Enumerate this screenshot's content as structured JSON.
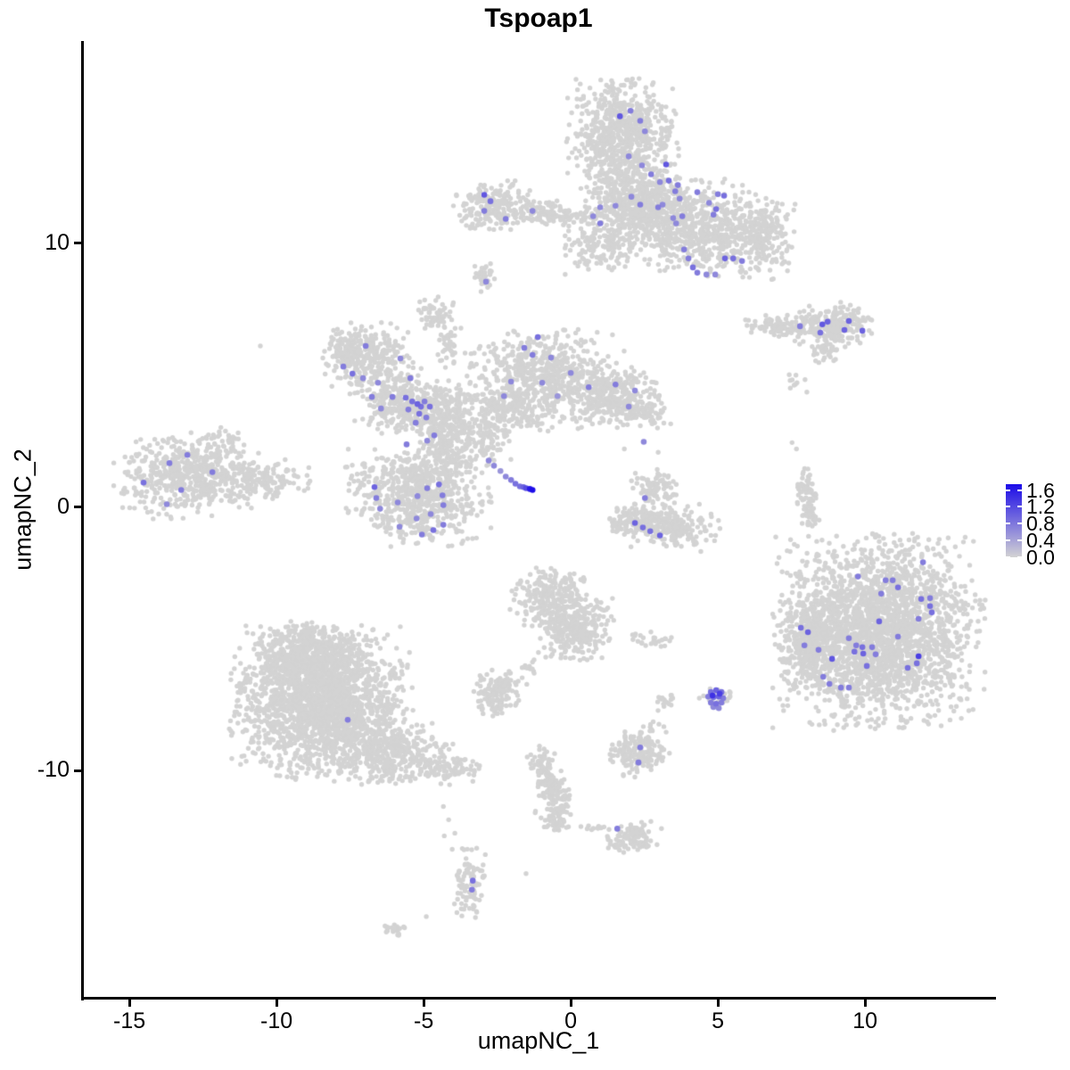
{
  "title": "Tspoap1",
  "axes": {
    "x": {
      "label": "umapNC_1",
      "ticks": [
        -15,
        -10,
        -5,
        0,
        5,
        10
      ]
    },
    "y": {
      "label": "umapNC_2",
      "ticks": [
        10,
        0,
        -10
      ]
    }
  },
  "legend": {
    "tick_labels": [
      "1.6",
      "1.2",
      "0.8",
      "0.4",
      "0.0"
    ],
    "tick_values": [
      1.6,
      1.2,
      0.8,
      0.4,
      0.0
    ],
    "bar_max": 1.74,
    "low_color": "#D3D3D3",
    "high_color": "#1C0CE8"
  },
  "chart_data": {
    "type": "scatter",
    "title": "Tspoap1",
    "xlabel": "umapNC_1",
    "ylabel": "umapNC_2",
    "xlim": [
      -16.58,
      14.39
    ],
    "ylim": [
      -18.61,
      17.63
    ],
    "expression_range": [
      0.0,
      1.6
    ],
    "background_point_color": "#D3D3D3",
    "background_clusters_format": [
      "center_x",
      "center_y",
      "sigma_x",
      "sigma_y",
      "n_points"
    ],
    "background_clusters": [
      [
        1.76,
        14.24,
        0.85,
        0.88,
        600
      ],
      [
        1.82,
        12.03,
        0.67,
        0.95,
        320
      ],
      [
        2.6,
        11.4,
        0.6,
        0.6,
        200
      ],
      [
        3.48,
        10.85,
        1.06,
        0.85,
        480
      ],
      [
        5.3,
        10.34,
        0.91,
        0.75,
        380
      ],
      [
        0.91,
        9.83,
        0.55,
        0.47,
        140
      ],
      [
        6.67,
        10.44,
        0.48,
        0.55,
        120
      ],
      [
        -2.64,
        11.42,
        0.61,
        0.44,
        220
      ],
      [
        -0.85,
        11.12,
        0.55,
        0.24,
        90
      ],
      [
        0.24,
        11.02,
        0.36,
        0.17,
        30
      ],
      [
        -2.88,
        8.71,
        0.18,
        0.24,
        30
      ],
      [
        7.12,
        6.88,
        0.55,
        0.2,
        90
      ],
      [
        8.85,
        6.85,
        0.61,
        0.41,
        220
      ],
      [
        8.7,
        5.9,
        0.24,
        0.2,
        35
      ],
      [
        7.67,
        4.68,
        0.24,
        0.27,
        10
      ],
      [
        -6.82,
        5.59,
        0.76,
        0.61,
        280
      ],
      [
        -7.48,
        6.03,
        0.36,
        0.34,
        90
      ],
      [
        -5.61,
        3.9,
        0.76,
        0.51,
        300
      ],
      [
        -4.24,
        3.39,
        0.61,
        0.61,
        230
      ],
      [
        -4.64,
        7.29,
        0.3,
        0.31,
        60
      ],
      [
        -4.15,
        6.2,
        0.21,
        0.41,
        40
      ],
      [
        -0.91,
        5.08,
        1.21,
        0.75,
        550
      ],
      [
        1.21,
        4.24,
        0.91,
        0.61,
        300
      ],
      [
        2.48,
        3.66,
        0.45,
        0.34,
        90
      ],
      [
        -1.97,
        3.66,
        0.76,
        0.41,
        200
      ],
      [
        -5.21,
        0.51,
        1.09,
        0.88,
        700
      ],
      [
        -4.09,
        2.03,
        0.55,
        0.51,
        120
      ],
      [
        -2.88,
        2.54,
        0.45,
        0.41,
        70
      ],
      [
        -13.03,
        1.19,
        1.09,
        0.75,
        550
      ],
      [
        -10.3,
        1.02,
        0.76,
        0.34,
        150
      ],
      [
        -11.58,
        2.54,
        0.18,
        0.27,
        20
      ],
      [
        2.88,
        0.68,
        0.36,
        0.41,
        90
      ],
      [
        3.18,
        -0.68,
        0.85,
        0.37,
        280
      ],
      [
        2.03,
        -0.44,
        0.27,
        0.24,
        50
      ],
      [
        7.97,
        0.75,
        0.15,
        0.37,
        45
      ],
      [
        8.12,
        -0.27,
        0.15,
        0.37,
        45
      ],
      [
        10.45,
        -4.75,
        1.58,
        1.63,
        2400
      ],
      [
        8.18,
        -5.25,
        0.42,
        0.75,
        280
      ],
      [
        -0.61,
        -3.46,
        0.67,
        0.54,
        250
      ],
      [
        0.15,
        -4.58,
        0.61,
        0.54,
        280
      ],
      [
        -1.45,
        -6.03,
        0.15,
        0.2,
        12
      ],
      [
        -2.48,
        -6.95,
        0.48,
        0.34,
        120
      ],
      [
        -2.64,
        -7.63,
        0.18,
        0.17,
        20
      ],
      [
        2.67,
        -4.98,
        0.36,
        0.17,
        25
      ],
      [
        4.94,
        -7.22,
        0.3,
        0.27,
        28
      ],
      [
        3.18,
        -7.39,
        0.18,
        0.2,
        18
      ],
      [
        2.67,
        -8.31,
        0.27,
        0.12,
        8
      ],
      [
        2.33,
        -9.32,
        0.48,
        0.41,
        170
      ],
      [
        -8.48,
        -7.46,
        1.36,
        1.29,
        2000
      ],
      [
        -8.94,
        -5.59,
        0.85,
        0.58,
        450
      ],
      [
        -6.06,
        -9.32,
        0.91,
        0.54,
        350
      ],
      [
        -4.24,
        -9.93,
        0.55,
        0.27,
        90
      ],
      [
        -3.45,
        -14.31,
        0.27,
        0.61,
        90
      ],
      [
        -0.97,
        -9.66,
        0.24,
        0.27,
        55
      ],
      [
        -0.67,
        -10.51,
        0.24,
        0.34,
        70
      ],
      [
        -0.39,
        -11.25,
        0.24,
        0.27,
        55
      ],
      [
        -0.55,
        -11.93,
        0.3,
        0.2,
        45
      ],
      [
        0.76,
        -12.14,
        0.33,
        0.08,
        12
      ],
      [
        2.18,
        -12.54,
        0.42,
        0.27,
        100
      ],
      [
        -5.97,
        -16.03,
        0.27,
        0.15,
        22
      ]
    ],
    "background_singles": [
      [
        8.03,
        -1.76
      ],
      [
        8.73,
        -2.31
      ],
      [
        8.58,
        -2.88
      ],
      [
        8.24,
        -3.32
      ],
      [
        7.76,
        -3.73
      ],
      [
        7.48,
        -4.14
      ],
      [
        7.21,
        -4.41
      ],
      [
        7.67,
        2.2
      ],
      [
        7.52,
        2.44
      ],
      [
        -10.55,
        6.1
      ],
      [
        1.82,
        2.2
      ],
      [
        2.97,
        2.07
      ],
      [
        4.42,
        -1.69
      ],
      [
        3.42,
        -4.95
      ],
      [
        -4.33,
        -11.36
      ],
      [
        -4.15,
        -11.86
      ],
      [
        -4.3,
        -12.47
      ],
      [
        -4.03,
        -12.98
      ],
      [
        -3.94,
        -12.37
      ],
      [
        -4.91,
        -15.53
      ],
      [
        -1.52,
        -13.9
      ],
      [
        -6.36,
        6.61
      ],
      [
        -6.21,
        6.1
      ]
    ],
    "expressing_points_format": [
      "x",
      "y",
      "expression_value"
    ],
    "expressing_points": [
      [
        1.67,
        14.81,
        1.0
      ],
      [
        2.03,
        15.02,
        0.7
      ],
      [
        2.36,
        14.64,
        0.7
      ],
      [
        2.52,
        14.24,
        0.6
      ],
      [
        1.97,
        13.29,
        0.6
      ],
      [
        2.42,
        12.95,
        0.6
      ],
      [
        3.24,
        12.98,
        1.0
      ],
      [
        2.73,
        12.61,
        0.7
      ],
      [
        3.03,
        12.31,
        0.6
      ],
      [
        3.33,
        12.37,
        0.8
      ],
      [
        3.64,
        12.2,
        0.7
      ],
      [
        3.55,
        11.97,
        0.7
      ],
      [
        3.7,
        11.69,
        0.6
      ],
      [
        4.3,
        11.93,
        0.7
      ],
      [
        5.0,
        11.86,
        0.7
      ],
      [
        5.21,
        11.8,
        0.8
      ],
      [
        4.7,
        11.53,
        0.6
      ],
      [
        4.94,
        11.29,
        0.8
      ],
      [
        4.85,
        11.08,
        0.7
      ],
      [
        3.79,
        11.02,
        0.7
      ],
      [
        3.48,
        10.95,
        0.6
      ],
      [
        3.58,
        10.75,
        0.6
      ],
      [
        2.97,
        11.36,
        0.7
      ],
      [
        3.12,
        11.46,
        0.6
      ],
      [
        2.06,
        11.76,
        0.6
      ],
      [
        2.36,
        11.46,
        0.7
      ],
      [
        1.0,
        11.36,
        0.6
      ],
      [
        0.76,
        11.02,
        0.6
      ],
      [
        1.0,
        10.75,
        0.7
      ],
      [
        1.52,
        11.42,
        0.6
      ],
      [
        3.85,
        9.76,
        0.7
      ],
      [
        4.0,
        9.42,
        0.7
      ],
      [
        4.15,
        9.08,
        0.8
      ],
      [
        4.3,
        8.88,
        0.7
      ],
      [
        4.61,
        8.81,
        0.6
      ],
      [
        4.91,
        8.81,
        0.6
      ],
      [
        5.24,
        9.42,
        0.9
      ],
      [
        5.52,
        9.42,
        0.8
      ],
      [
        5.82,
        9.32,
        0.7
      ],
      [
        -2.94,
        11.83,
        1.0
      ],
      [
        -2.73,
        11.59,
        0.8
      ],
      [
        -2.94,
        11.22,
        0.7
      ],
      [
        -2.21,
        10.92,
        0.7
      ],
      [
        -1.3,
        11.22,
        0.6
      ],
      [
        -2.88,
        8.54,
        0.6
      ],
      [
        7.79,
        6.85,
        0.7
      ],
      [
        8.55,
        6.92,
        1.0
      ],
      [
        8.73,
        7.02,
        0.9
      ],
      [
        8.48,
        6.61,
        0.8
      ],
      [
        9.45,
        7.05,
        0.9
      ],
      [
        9.3,
        6.71,
        0.9
      ],
      [
        9.91,
        6.68,
        0.9
      ],
      [
        -6.97,
        6.1,
        0.7
      ],
      [
        -5.79,
        5.63,
        0.6
      ],
      [
        -7.73,
        5.32,
        0.7
      ],
      [
        -7.42,
        5.05,
        0.8
      ],
      [
        -7.06,
        4.88,
        0.6
      ],
      [
        -6.55,
        4.71,
        0.6
      ],
      [
        -5.45,
        4.88,
        0.7
      ],
      [
        -6.76,
        4.17,
        0.7
      ],
      [
        -5.61,
        4.14,
        0.8
      ],
      [
        -5.39,
        4.0,
        0.8
      ],
      [
        -5.21,
        3.9,
        0.9
      ],
      [
        -5.09,
        3.8,
        0.8
      ],
      [
        -5.52,
        3.69,
        0.7
      ],
      [
        -4.97,
        4.0,
        0.7
      ],
      [
        -4.79,
        3.8,
        0.8
      ],
      [
        -5.15,
        3.53,
        0.8
      ],
      [
        -4.91,
        3.39,
        0.7
      ],
      [
        -6.06,
        4.17,
        0.7
      ],
      [
        -6.45,
        3.73,
        0.6
      ],
      [
        -5.27,
        3.19,
        0.7
      ],
      [
        -4.64,
        2.71,
        0.7
      ],
      [
        -4.88,
        2.51,
        0.6
      ],
      [
        -5.58,
        2.37,
        0.7
      ],
      [
        -6.67,
        0.75,
        0.9
      ],
      [
        -6.61,
        0.34,
        0.7
      ],
      [
        -6.48,
        -0.07,
        0.6
      ],
      [
        -5.88,
        0.17,
        0.6
      ],
      [
        -5.21,
        0.41,
        0.6
      ],
      [
        -4.88,
        0.71,
        0.7
      ],
      [
        -4.48,
        0.85,
        0.8
      ],
      [
        -4.36,
        0.44,
        0.7
      ],
      [
        -4.33,
        0.07,
        0.7
      ],
      [
        -4.76,
        -0.27,
        0.6
      ],
      [
        -5.24,
        -0.44,
        0.6
      ],
      [
        -4.33,
        -0.68,
        0.7
      ],
      [
        -4.67,
        -0.88,
        0.8
      ],
      [
        -5.06,
        -1.05,
        0.7
      ],
      [
        -5.82,
        -0.75,
        0.6
      ],
      [
        -2.79,
        1.76,
        0.6
      ],
      [
        -2.61,
        1.56,
        0.6
      ],
      [
        -2.39,
        1.36,
        0.5
      ],
      [
        -2.21,
        1.15,
        0.6
      ],
      [
        -2.03,
        1.02,
        0.7
      ],
      [
        -1.88,
        0.88,
        0.8
      ],
      [
        -1.73,
        0.78,
        0.8
      ],
      [
        -1.61,
        0.75,
        0.9
      ],
      [
        -1.52,
        0.71,
        1.1
      ],
      [
        -1.39,
        0.68,
        1.5
      ],
      [
        -1.3,
        0.64,
        1.6
      ],
      [
        -1.12,
        6.44,
        0.8
      ],
      [
        -1.58,
        6.03,
        0.7
      ],
      [
        -1.3,
        5.76,
        0.7
      ],
      [
        -0.67,
        5.66,
        0.6
      ],
      [
        0.0,
        5.08,
        0.6
      ],
      [
        0.61,
        4.54,
        0.7
      ],
      [
        -0.97,
        4.71,
        0.6
      ],
      [
        -0.45,
        4.2,
        0.5
      ],
      [
        -2.03,
        4.75,
        0.6
      ],
      [
        -2.27,
        4.2,
        0.6
      ],
      [
        1.52,
        4.64,
        0.7
      ],
      [
        2.18,
        4.41,
        0.6
      ],
      [
        1.97,
        3.8,
        0.6
      ],
      [
        2.48,
        2.47,
        0.6
      ],
      [
        -13.03,
        1.97,
        0.7
      ],
      [
        -13.64,
        1.66,
        0.7
      ],
      [
        -14.52,
        0.92,
        0.8
      ],
      [
        -12.18,
        1.32,
        0.7
      ],
      [
        -13.24,
        0.64,
        0.7
      ],
      [
        -13.73,
        0.1,
        0.6
      ],
      [
        2.52,
        0.34,
        0.7
      ],
      [
        2.18,
        -0.61,
        0.9
      ],
      [
        2.45,
        -0.78,
        0.8
      ],
      [
        2.7,
        -0.92,
        0.8
      ],
      [
        3.03,
        -1.08,
        0.9
      ],
      [
        11.97,
        -2.1,
        0.7
      ],
      [
        9.76,
        -2.64,
        0.7
      ],
      [
        10.7,
        -2.78,
        0.7
      ],
      [
        10.94,
        -2.78,
        0.7
      ],
      [
        11.12,
        -3.05,
        0.8
      ],
      [
        10.55,
        -3.29,
        0.7
      ],
      [
        11.91,
        -3.49,
        0.8
      ],
      [
        12.21,
        -3.46,
        0.7
      ],
      [
        12.21,
        -3.76,
        0.8
      ],
      [
        12.27,
        -4.0,
        0.8
      ],
      [
        11.82,
        -4.24,
        0.7
      ],
      [
        10.48,
        -4.34,
        0.9
      ],
      [
        7.82,
        -4.58,
        0.8
      ],
      [
        8.06,
        -4.75,
        0.9
      ],
      [
        9.45,
        -4.98,
        0.7
      ],
      [
        11.12,
        -4.92,
        0.7
      ],
      [
        7.94,
        -5.25,
        0.7
      ],
      [
        8.42,
        -5.42,
        0.7
      ],
      [
        9.7,
        -5.25,
        0.7
      ],
      [
        9.91,
        -5.32,
        0.8
      ],
      [
        10.24,
        -5.32,
        0.7
      ],
      [
        9.64,
        -5.49,
        0.8
      ],
      [
        9.94,
        -5.56,
        0.9
      ],
      [
        10.36,
        -5.59,
        0.7
      ],
      [
        8.88,
        -5.76,
        1.0
      ],
      [
        10.06,
        -6.03,
        0.8
      ],
      [
        11.76,
        -5.93,
        0.8
      ],
      [
        11.45,
        -6.1,
        0.8
      ],
      [
        11.82,
        -5.66,
        1.2
      ],
      [
        8.58,
        -6.44,
        0.7
      ],
      [
        8.79,
        -6.71,
        0.7
      ],
      [
        9.18,
        -6.85,
        0.7
      ],
      [
        9.45,
        -6.85,
        0.7
      ],
      [
        -7.58,
        -8.07,
        0.7
      ],
      [
        4.76,
        -7.02,
        0.8
      ],
      [
        4.94,
        -6.95,
        0.9
      ],
      [
        5.12,
        -7.02,
        0.8
      ],
      [
        4.67,
        -7.19,
        0.7
      ],
      [
        4.85,
        -7.22,
        0.8
      ],
      [
        5.03,
        -7.19,
        0.9
      ],
      [
        5.18,
        -7.25,
        0.7
      ],
      [
        4.76,
        -7.42,
        0.7
      ],
      [
        4.94,
        -7.46,
        0.8
      ],
      [
        5.12,
        -7.42,
        0.7
      ],
      [
        4.85,
        -7.59,
        0.6
      ],
      [
        5.03,
        -7.63,
        0.6
      ],
      [
        4.82,
        -7.15,
        1.3
      ],
      [
        5.06,
        -7.08,
        1.2
      ],
      [
        2.36,
        -9.12,
        0.7
      ],
      [
        2.3,
        -9.69,
        0.7
      ],
      [
        -3.33,
        -14.17,
        0.8
      ],
      [
        -3.36,
        -14.51,
        0.7
      ],
      [
        1.58,
        -12.2,
        0.7
      ]
    ]
  }
}
